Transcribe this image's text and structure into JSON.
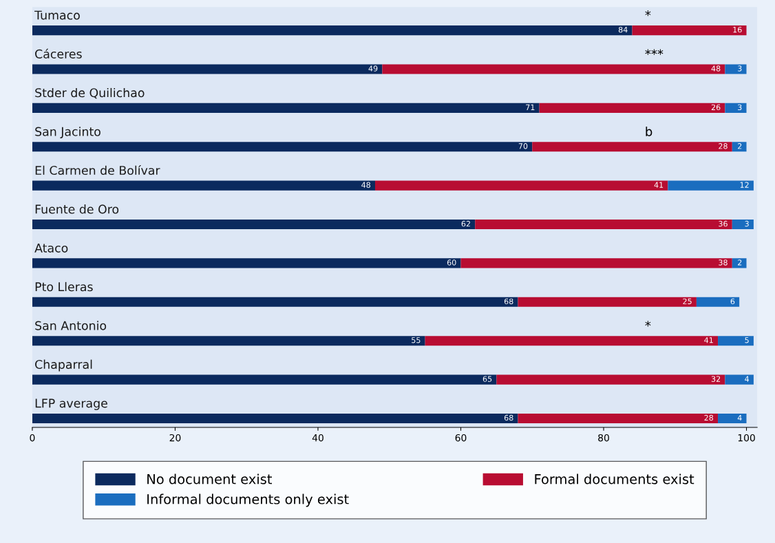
{
  "chart_data": {
    "type": "bar",
    "orientation": "horizontal",
    "stacked": true,
    "data_labels": true,
    "legend": "bottom",
    "grid": false,
    "categories": [
      "Tumaco",
      "Cáceres",
      "Stder de Quilichao",
      "San Jacinto",
      "El Carmen de Bolívar",
      "Fuente de Oro",
      "Ataco",
      "Pto Lleras",
      "San Antonio",
      "Chaparral",
      "LFP average"
    ],
    "series": [
      {
        "name": "No document exist",
        "color": "#0b2a5e",
        "values": [
          84,
          49,
          71,
          70,
          48,
          62,
          60,
          68,
          55,
          65,
          68
        ]
      },
      {
        "name": "Formal documents exist",
        "color": "#b80d32",
        "values": [
          16,
          48,
          26,
          28,
          41,
          36,
          38,
          25,
          41,
          32,
          28
        ]
      },
      {
        "name": "Informal documents only exist",
        "color": "#1a6dbf",
        "values": [
          null,
          3,
          3,
          2,
          12,
          3,
          2,
          6,
          5,
          4,
          4
        ]
      }
    ],
    "xlim": [
      0,
      101.5
    ],
    "xticks": [
      0,
      20,
      40,
      60,
      80,
      100
    ],
    "annotations": [
      "*",
      "***",
      "b",
      "*"
    ]
  }
}
